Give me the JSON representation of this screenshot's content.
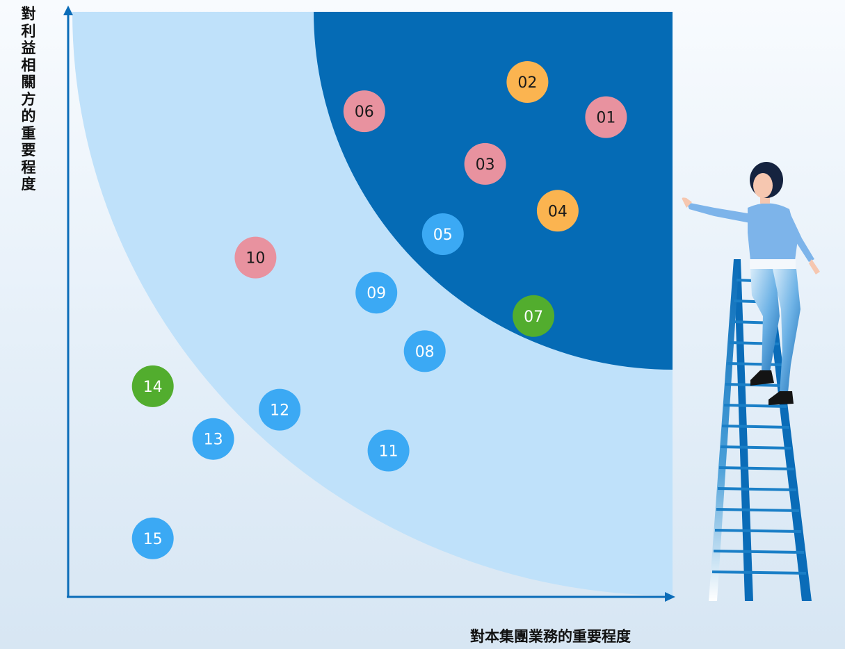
{
  "chart_data": {
    "type": "scatter",
    "xlabel": "對本集團業務的重要程度",
    "ylabel": "對利益相關方的重要程度",
    "colors": {
      "outer_band": "#bfe1fa",
      "inner_zone": "#056bb5",
      "axis": "#0a6cb8",
      "pink": "#e8929f",
      "orange": "#fbb450",
      "blue": "#3ba9f4",
      "green": "#52ad2e"
    },
    "points": [
      {
        "label": "01",
        "x": 0.89,
        "y": 0.82,
        "color": "pink"
      },
      {
        "label": "02",
        "x": 0.76,
        "y": 0.88,
        "color": "orange"
      },
      {
        "label": "03",
        "x": 0.69,
        "y": 0.74,
        "color": "pink"
      },
      {
        "label": "04",
        "x": 0.81,
        "y": 0.66,
        "color": "orange"
      },
      {
        "label": "05",
        "x": 0.62,
        "y": 0.62,
        "color": "blue"
      },
      {
        "label": "06",
        "x": 0.49,
        "y": 0.83,
        "color": "pink"
      },
      {
        "label": "07",
        "x": 0.77,
        "y": 0.48,
        "color": "green"
      },
      {
        "label": "08",
        "x": 0.59,
        "y": 0.42,
        "color": "blue"
      },
      {
        "label": "09",
        "x": 0.51,
        "y": 0.52,
        "color": "blue"
      },
      {
        "label": "10",
        "x": 0.31,
        "y": 0.58,
        "color": "pink"
      },
      {
        "label": "11",
        "x": 0.53,
        "y": 0.25,
        "color": "blue"
      },
      {
        "label": "12",
        "x": 0.35,
        "y": 0.32,
        "color": "blue"
      },
      {
        "label": "13",
        "x": 0.24,
        "y": 0.27,
        "color": "blue"
      },
      {
        "label": "14",
        "x": 0.14,
        "y": 0.36,
        "color": "green"
      },
      {
        "label": "15",
        "x": 0.14,
        "y": 0.1,
        "color": "blue"
      }
    ]
  }
}
